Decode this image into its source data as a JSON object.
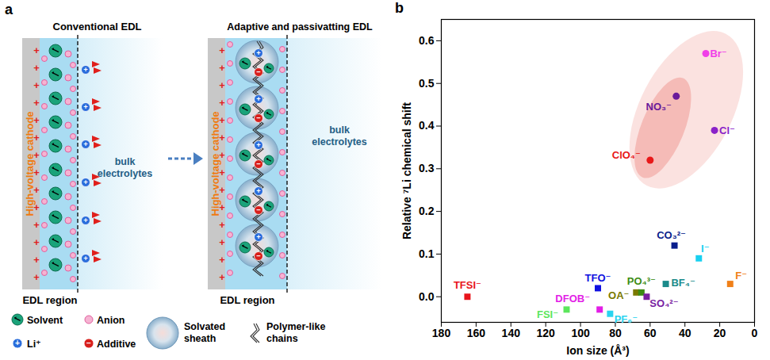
{
  "panel_letters": [
    "a",
    "b"
  ],
  "diagram": {
    "panels": [
      {
        "title": "Conventional EDL",
        "electrode": "High-voltage cathode",
        "bulk": "bulk electrolytes",
        "region": "EDL region"
      },
      {
        "title": "Adaptive and passivatting EDL",
        "electrode": "High-voltage cathode",
        "bulk": "bulk electrolytes",
        "region": "EDL region"
      }
    ],
    "symbols": {
      "charge": "+",
      "cation": "+",
      "additive": "−"
    },
    "legend": {
      "solvent": "Solvent",
      "anion": "Anion",
      "cation": "Li⁺",
      "additive": "Additive",
      "sheath": "Solvated sheath",
      "chain": "Polymer-like chains"
    }
  },
  "chart_data": {
    "type": "scatter",
    "xlabel": "Ion size (Å³)",
    "ylabel": "Relative ⁷Li chemical shift",
    "xlim": [
      180,
      0
    ],
    "xticks": [
      180,
      160,
      140,
      120,
      100,
      80,
      60,
      40,
      20,
      0
    ],
    "ylim": [
      -0.06,
      0.65
    ],
    "yticks": [
      {
        "value": 0,
        "label": "0.0"
      },
      0.1,
      0.2,
      0.3,
      0.4,
      0.5,
      0.6
    ],
    "grid": false,
    "series": [
      {
        "name": "TFSI⁻",
        "color": "#e8141b",
        "marker": "square",
        "x": [
          165
        ],
        "values": [
          0.0
        ]
      },
      {
        "name": "FSI⁻",
        "color": "#5ce65c",
        "marker": "square",
        "x": [
          108
        ],
        "values": [
          -0.03
        ]
      },
      {
        "name": "DFOB⁻",
        "color": "#e21ee6",
        "marker": "square",
        "x": [
          89
        ],
        "values": [
          -0.03
        ]
      },
      {
        "name": "TFO⁻",
        "color": "#1010e0",
        "marker": "square",
        "x": [
          90
        ],
        "values": [
          0.02
        ]
      },
      {
        "name": "PF₆⁻",
        "color": "#2ad4f0",
        "marker": "square",
        "x": [
          83
        ],
        "values": [
          -0.04
        ]
      },
      {
        "name": "OA⁻",
        "color": "#7a7a00",
        "marker": "square",
        "x": [
          68
        ],
        "values": [
          0.01
        ]
      },
      {
        "name": "PO₄³⁻",
        "color": "#3c8c14",
        "marker": "square",
        "x": [
          65
        ],
        "values": [
          0.01
        ]
      },
      {
        "name": "SO₄²⁻",
        "color": "#7a1fa2",
        "marker": "square",
        "x": [
          62
        ],
        "values": [
          0.0
        ]
      },
      {
        "name": "BF₄⁻",
        "color": "#1a8a8a",
        "marker": "square",
        "x": [
          51
        ],
        "values": [
          0.03
        ]
      },
      {
        "name": "CO₃²⁻",
        "color": "#0a1e8c",
        "marker": "square",
        "x": [
          46
        ],
        "values": [
          0.12
        ]
      },
      {
        "name": "I⁻",
        "color": "#18d0f0",
        "marker": "square",
        "x": [
          32
        ],
        "values": [
          0.09
        ]
      },
      {
        "name": "F⁻",
        "color": "#f08018",
        "marker": "square",
        "x": [
          14
        ],
        "values": [
          0.03
        ]
      },
      {
        "name": "ClO₄⁻",
        "color": "#e81818",
        "marker": "circle",
        "x": [
          60
        ],
        "values": [
          0.32
        ]
      },
      {
        "name": "NO₃⁻",
        "color": "#6a1a9a",
        "marker": "circle",
        "x": [
          45
        ],
        "values": [
          0.47
        ]
      },
      {
        "name": "Cl⁻",
        "color": "#8a22c8",
        "marker": "circle",
        "x": [
          23
        ],
        "values": [
          0.39
        ]
      },
      {
        "name": "Br⁻",
        "color": "#f040e8",
        "marker": "circle",
        "x": [
          28
        ],
        "values": [
          0.57
        ]
      }
    ]
  }
}
